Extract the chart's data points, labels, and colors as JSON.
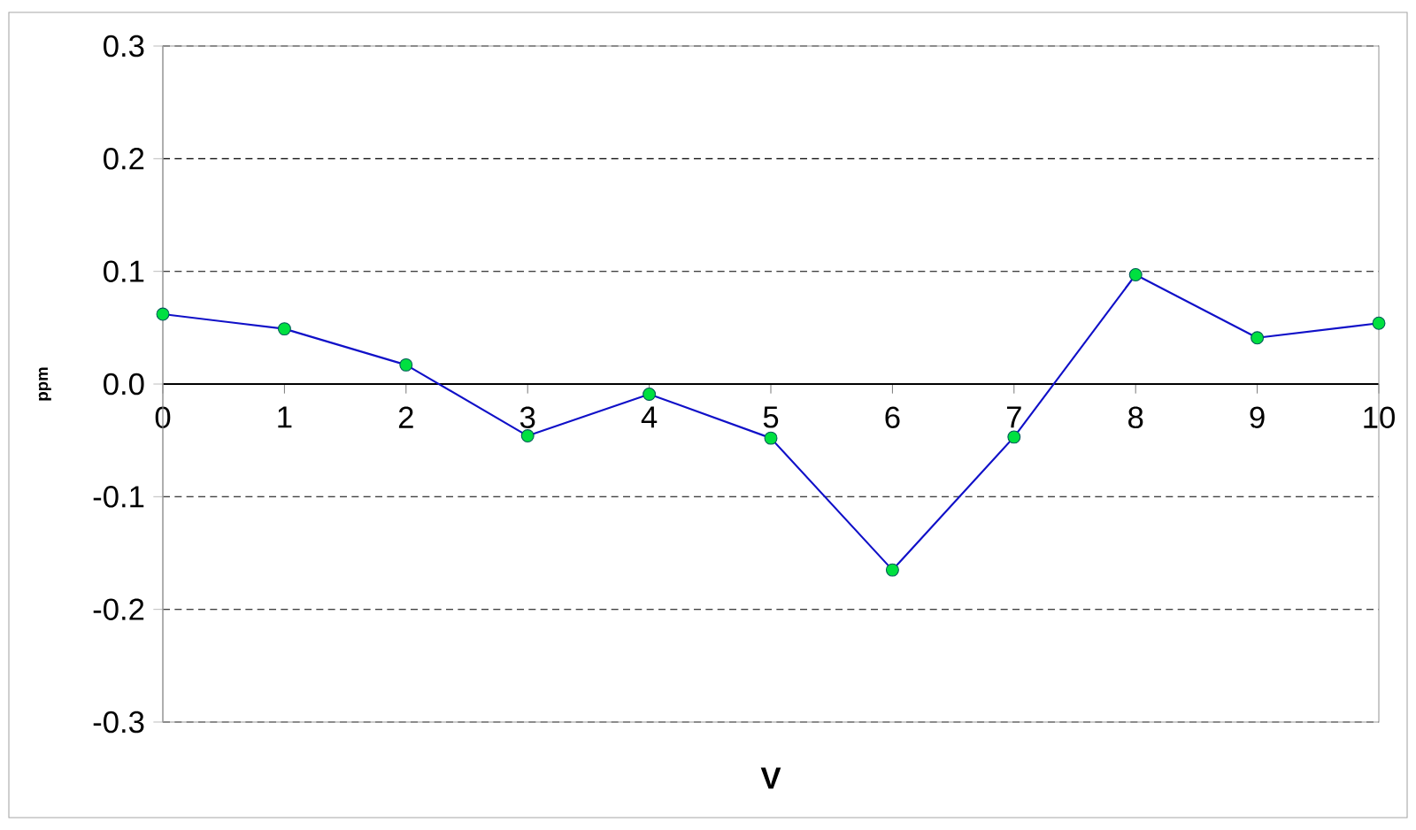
{
  "chart_data": {
    "type": "line",
    "xlabel": "V",
    "ylabel": "ppm",
    "x": [
      0,
      1,
      2,
      3,
      4,
      5,
      6,
      7,
      8,
      9,
      10
    ],
    "series": [
      {
        "color": "#1010c8",
        "values": [
          0.062,
          0.049,
          0.017,
          -0.046,
          -0.009,
          -0.048,
          -0.165,
          -0.047,
          0.097,
          0.041,
          0.054
        ]
      }
    ],
    "marker": "circle",
    "xlim": [
      0,
      10
    ],
    "xticks": [
      0,
      1,
      2,
      3,
      4,
      5,
      6,
      7,
      8,
      9,
      10
    ],
    "ylim": [
      -0.3,
      0.3
    ],
    "yticks": [
      -0.3,
      -0.2,
      -0.1,
      {
        "value": 0,
        "label": "0.0"
      },
      0.1,
      0.2,
      0.3
    ],
    "grid": "y"
  }
}
